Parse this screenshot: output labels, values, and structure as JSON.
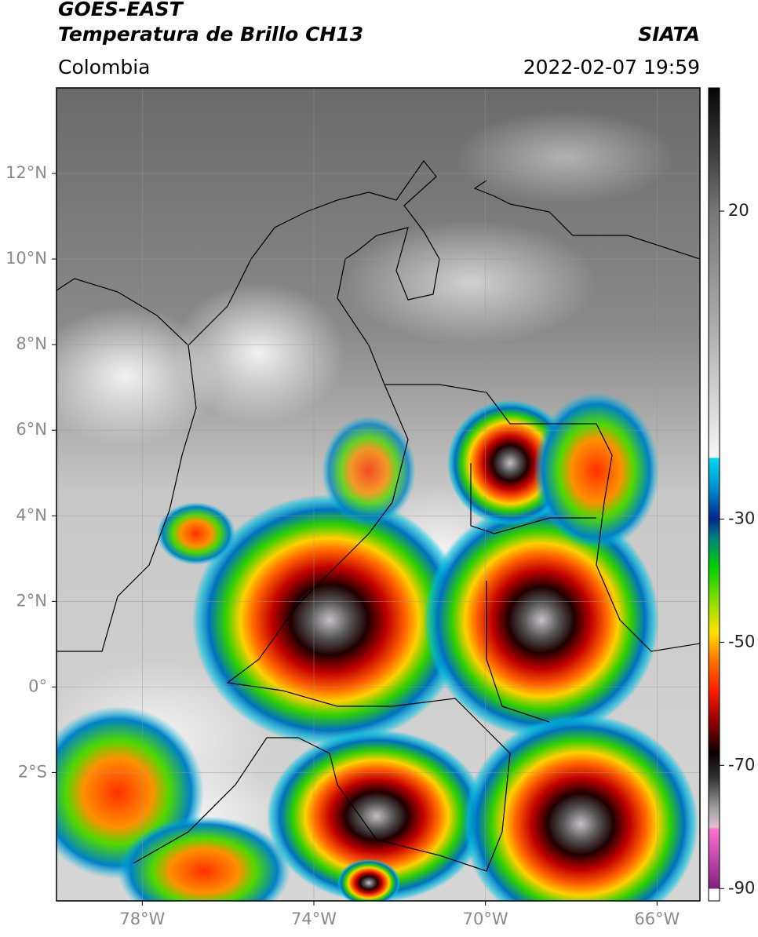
{
  "header": {
    "title": "GOES-EAST",
    "subtitle": "Temperatura de Brillo CH13",
    "source": "SIATA",
    "region": "Colombia",
    "datetime": "2022-02-07 19:59"
  },
  "map": {
    "xlim": [
      -80,
      -65
    ],
    "ylim": [
      -5,
      14
    ],
    "grid": true,
    "xticks": [
      {
        "value": -78,
        "label": "78°W"
      },
      {
        "value": -74,
        "label": "74°W"
      },
      {
        "value": -70,
        "label": "70°W"
      },
      {
        "value": -66,
        "label": "66°W"
      }
    ],
    "yticks": [
      {
        "value": 12,
        "label": "12°N"
      },
      {
        "value": 10,
        "label": "10°N"
      },
      {
        "value": 8,
        "label": "8°N"
      },
      {
        "value": 6,
        "label": "6°N"
      },
      {
        "value": 4,
        "label": "4°N"
      },
      {
        "value": 2,
        "label": "2°N"
      },
      {
        "value": 0,
        "label": "0°"
      },
      {
        "value": -2,
        "label": "2°S"
      }
    ]
  },
  "colorbar": {
    "lim": [
      -92,
      40
    ],
    "ticks": [
      20,
      -30,
      -50,
      -70,
      -90
    ]
  }
}
